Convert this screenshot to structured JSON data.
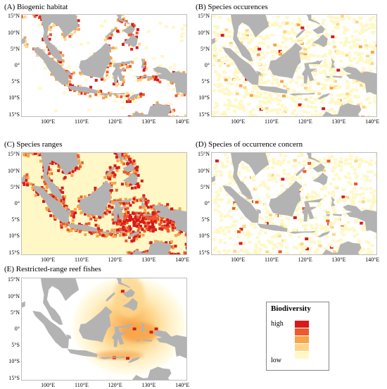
{
  "panels": [
    {
      "title": "(A) Biogenic habitat"
    },
    {
      "title": "(B) Species occurences"
    },
    {
      "title": "(C) Species ranges"
    },
    {
      "title": "(D) Species of occurrence concern"
    },
    {
      "title": "(E) Restricted-range reef fishes"
    }
  ],
  "lat_labels": [
    "15°N",
    "10°N",
    "5°N",
    "0°",
    "5°S",
    "10°S",
    "15°S"
  ],
  "lon_labels": [
    "100°E",
    "110°E",
    "120°E",
    "130°E",
    "140°E"
  ],
  "legend": {
    "title": "Biodiversity",
    "high": "high",
    "low": "low",
    "colors": [
      "#d7191c",
      "#ee5a2c",
      "#f7a44a",
      "#fdd58a",
      "#fff8c6"
    ]
  },
  "colors": {
    "land": "#b3b3b3"
  }
}
